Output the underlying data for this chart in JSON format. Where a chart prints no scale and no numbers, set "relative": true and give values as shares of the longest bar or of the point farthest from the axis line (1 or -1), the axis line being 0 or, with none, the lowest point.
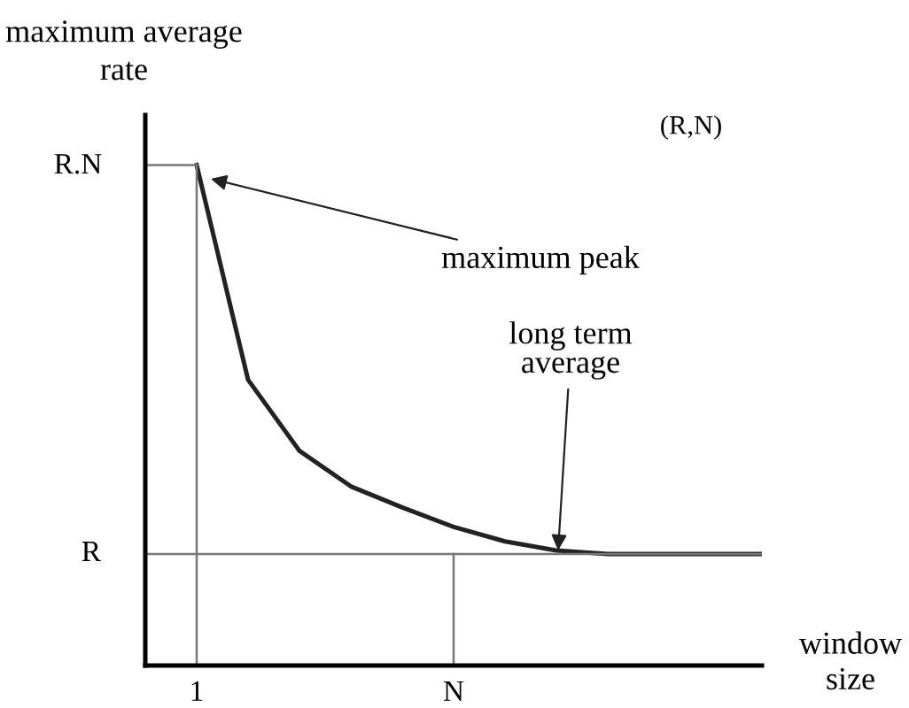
{
  "chart_data": {
    "type": "line",
    "ylabel": "maximum average rate",
    "xlabel": "window size",
    "relative": true,
    "categories": [
      null,
      "1",
      null,
      null,
      null,
      null,
      "N",
      null,
      null,
      null,
      null,
      null,
      null
    ],
    "grid": false,
    "legend": false,
    "marker": "none",
    "line_style": "solid",
    "series": [
      {
        "color": "#222222",
        "values": [
          null,
          1.0,
          0.571,
          0.429,
          0.358,
          0.316,
          0.277,
          0.248,
          0.23,
          0.223,
          0.223,
          0.223,
          0.223
        ]
      },
      {
        "color": "#777777",
        "values": [
          1.0,
          1.0,
          null,
          null,
          null,
          null,
          null,
          null,
          null,
          null,
          null,
          null,
          null
        ]
      },
      {
        "color": "#777777",
        "x": [
          "1",
          "1"
        ],
        "values": [
          1.0,
          0
        ]
      },
      {
        "color": "#777777",
        "x": [
          "N",
          "N"
        ],
        "values": [
          0,
          0.223
        ]
      }
    ],
    "ref_lines": [
      {
        "axis": "y",
        "value": 0.223,
        "label": "R",
        "color": "#777777"
      }
    ],
    "annotations": [
      "R.N",
      "maximum peak",
      "long term\naverage",
      "(R,N)"
    ]
  }
}
